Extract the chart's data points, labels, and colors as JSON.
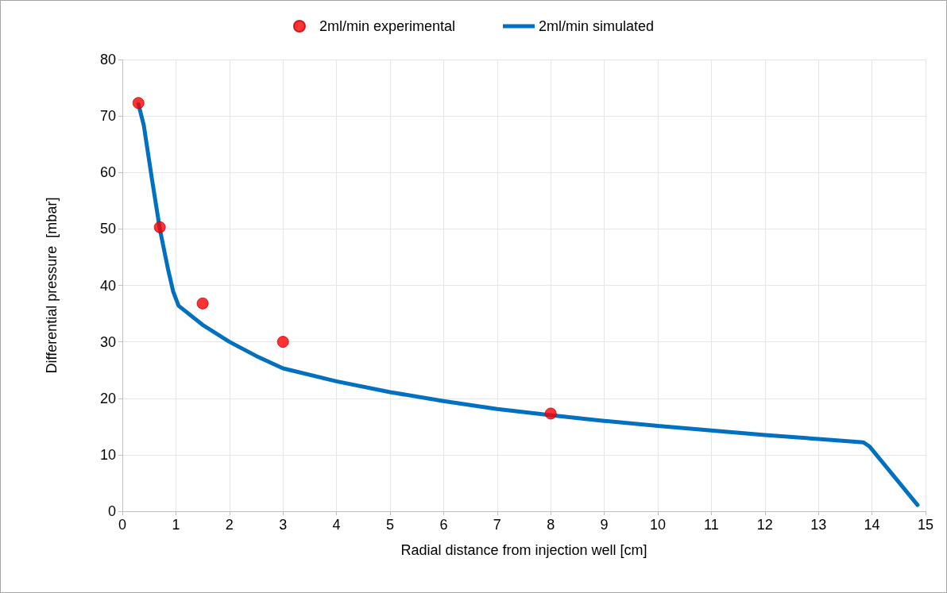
{
  "chart_data": {
    "type": "line",
    "xlabel": "Radial distance from injection well [cm]",
    "ylabel": "Differential pressure  [mbar]",
    "xlim": [
      0,
      15
    ],
    "xticks": [
      0,
      1,
      2,
      3,
      4,
      5,
      6,
      7,
      8,
      9,
      10,
      11,
      12,
      13,
      14,
      15
    ],
    "ylim": [
      0,
      80
    ],
    "yticks": [
      0,
      10,
      20,
      30,
      40,
      50,
      60,
      70,
      80
    ],
    "grid": true,
    "legend": "top",
    "series": [
      {
        "name": "2ml/min experimental",
        "type": "scatter",
        "marker": "circle",
        "color": "#ff0000",
        "x": [
          0.3,
          0.7,
          1.5,
          3,
          8
        ],
        "values": [
          72.3,
          50.3,
          36.8,
          30,
          17.3
        ]
      },
      {
        "name": "2ml/min simulated",
        "type": "line",
        "marker": "none",
        "line_style": "solid",
        "color": "#0070c0",
        "x": [
          0.3,
          0.4,
          0.55,
          0.7,
          0.85,
          0.95,
          1.05,
          1.5,
          2,
          2.5,
          3,
          4,
          5,
          6,
          7,
          8,
          9,
          10,
          11,
          12,
          13,
          13.84,
          13.95,
          14.4,
          14.85
        ],
        "values": [
          72.1,
          68.4,
          59,
          50,
          43,
          38.9,
          36.4,
          33,
          30,
          27.5,
          25.3,
          23,
          21.1,
          19.5,
          18.1,
          17,
          16,
          15.1,
          14.3,
          13.5,
          12.8,
          12.2,
          11.5,
          6.3,
          1.1
        ]
      }
    ]
  }
}
